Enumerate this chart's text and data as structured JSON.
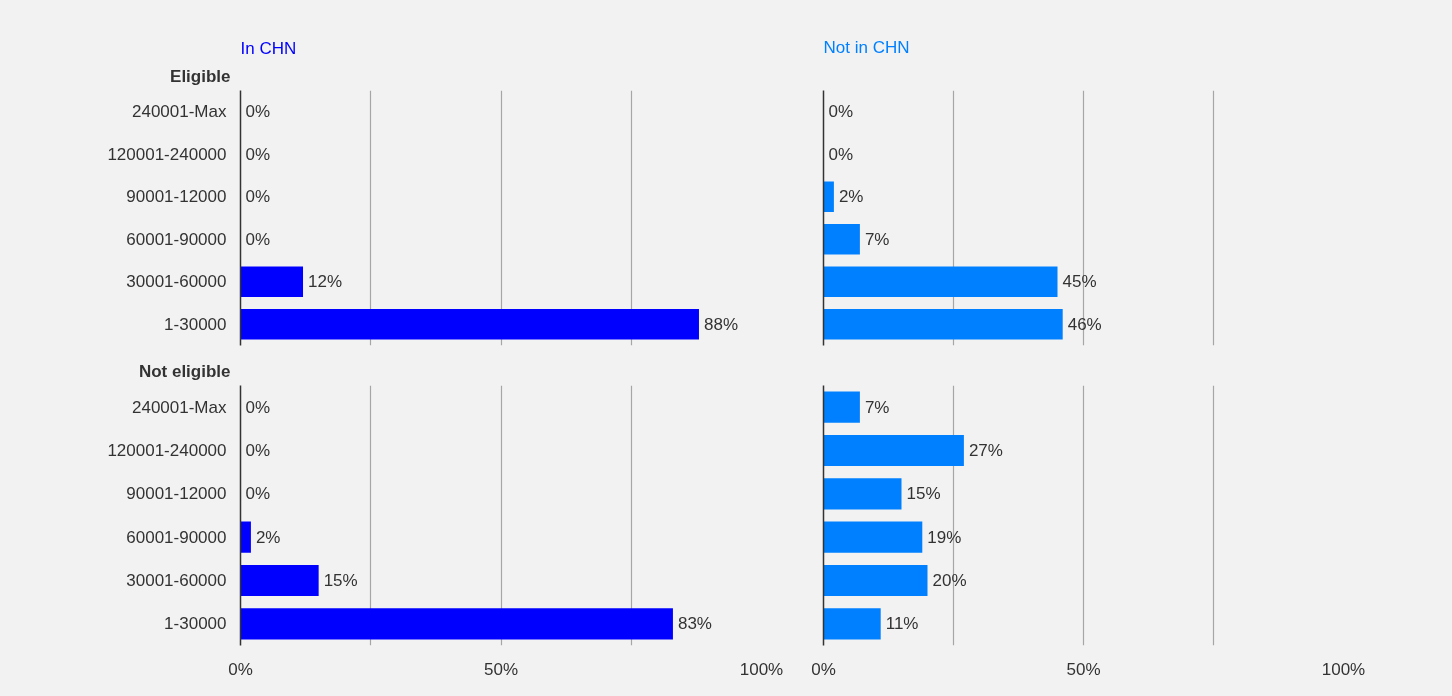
{
  "chart_data": [
    {
      "type": "bar",
      "orientation": "horizontal",
      "title": "In CHN",
      "ylabel": "Eligible",
      "categories": [
        "240001-Max",
        "120001-240000",
        "90001-12000",
        "60001-90000",
        "30001-60000",
        "1-30000"
      ],
      "values": [
        0,
        0,
        0,
        0,
        12,
        88
      ],
      "color": "#0000ff",
      "value_labels": [
        "0%",
        "0%",
        "0%",
        "0%",
        "12%",
        "88%"
      ],
      "xlim": [
        0,
        100
      ],
      "xticks": [
        0,
        25,
        50,
        75,
        100
      ],
      "grid": "x",
      "tick_labels": "y"
    },
    {
      "type": "bar",
      "orientation": "horizontal",
      "title": "Not in CHN",
      "categories": [
        null,
        null,
        null,
        null,
        null,
        null
      ],
      "values": [
        0,
        0,
        2,
        7,
        45,
        46
      ],
      "color": "#0080ff",
      "value_labels": [
        "0%",
        "0%",
        "2%",
        "7%",
        "45%",
        "46%"
      ],
      "xlim": [
        0,
        100
      ],
      "xticks": [
        0,
        25,
        50,
        75,
        100
      ],
      "grid": "x",
      "tick_labels": false
    },
    {
      "type": "bar",
      "orientation": "horizontal",
      "ylabel": "Not eligible",
      "categories": [
        "240001-Max",
        "120001-240000",
        "90001-12000",
        "60001-90000",
        "30001-60000",
        "1-30000"
      ],
      "values": [
        0,
        0,
        0,
        2,
        15,
        83
      ],
      "color": "#0000ff",
      "value_labels": [
        "0%",
        "0%",
        "0%",
        "2%",
        "15%",
        "83%"
      ],
      "xlim": [
        0,
        100
      ],
      "xticks": [
        {
          "value": 0,
          "label": "0%"
        },
        {
          "value": 25,
          "label": null
        },
        {
          "value": 50,
          "label": "50%"
        },
        {
          "value": 75,
          "label": null
        },
        {
          "value": 100,
          "label": "100%"
        }
      ],
      "grid": "x"
    },
    {
      "type": "bar",
      "orientation": "horizontal",
      "categories": [
        null,
        null,
        null,
        null,
        null,
        null
      ],
      "values": [
        7,
        27,
        15,
        19,
        20,
        11
      ],
      "color": "#0080ff",
      "value_labels": [
        "7%",
        "27%",
        "15%",
        "19%",
        "20%",
        "11%"
      ],
      "xlim": [
        0,
        100
      ],
      "xticks": [
        {
          "value": 0,
          "label": "0%"
        },
        {
          "value": 25,
          "label": null
        },
        {
          "value": 50,
          "label": "50%"
        },
        {
          "value": 75,
          "label": null
        },
        {
          "value": 100,
          "label": "100%"
        }
      ],
      "grid": "x",
      "tick_labels": "x"
    }
  ]
}
